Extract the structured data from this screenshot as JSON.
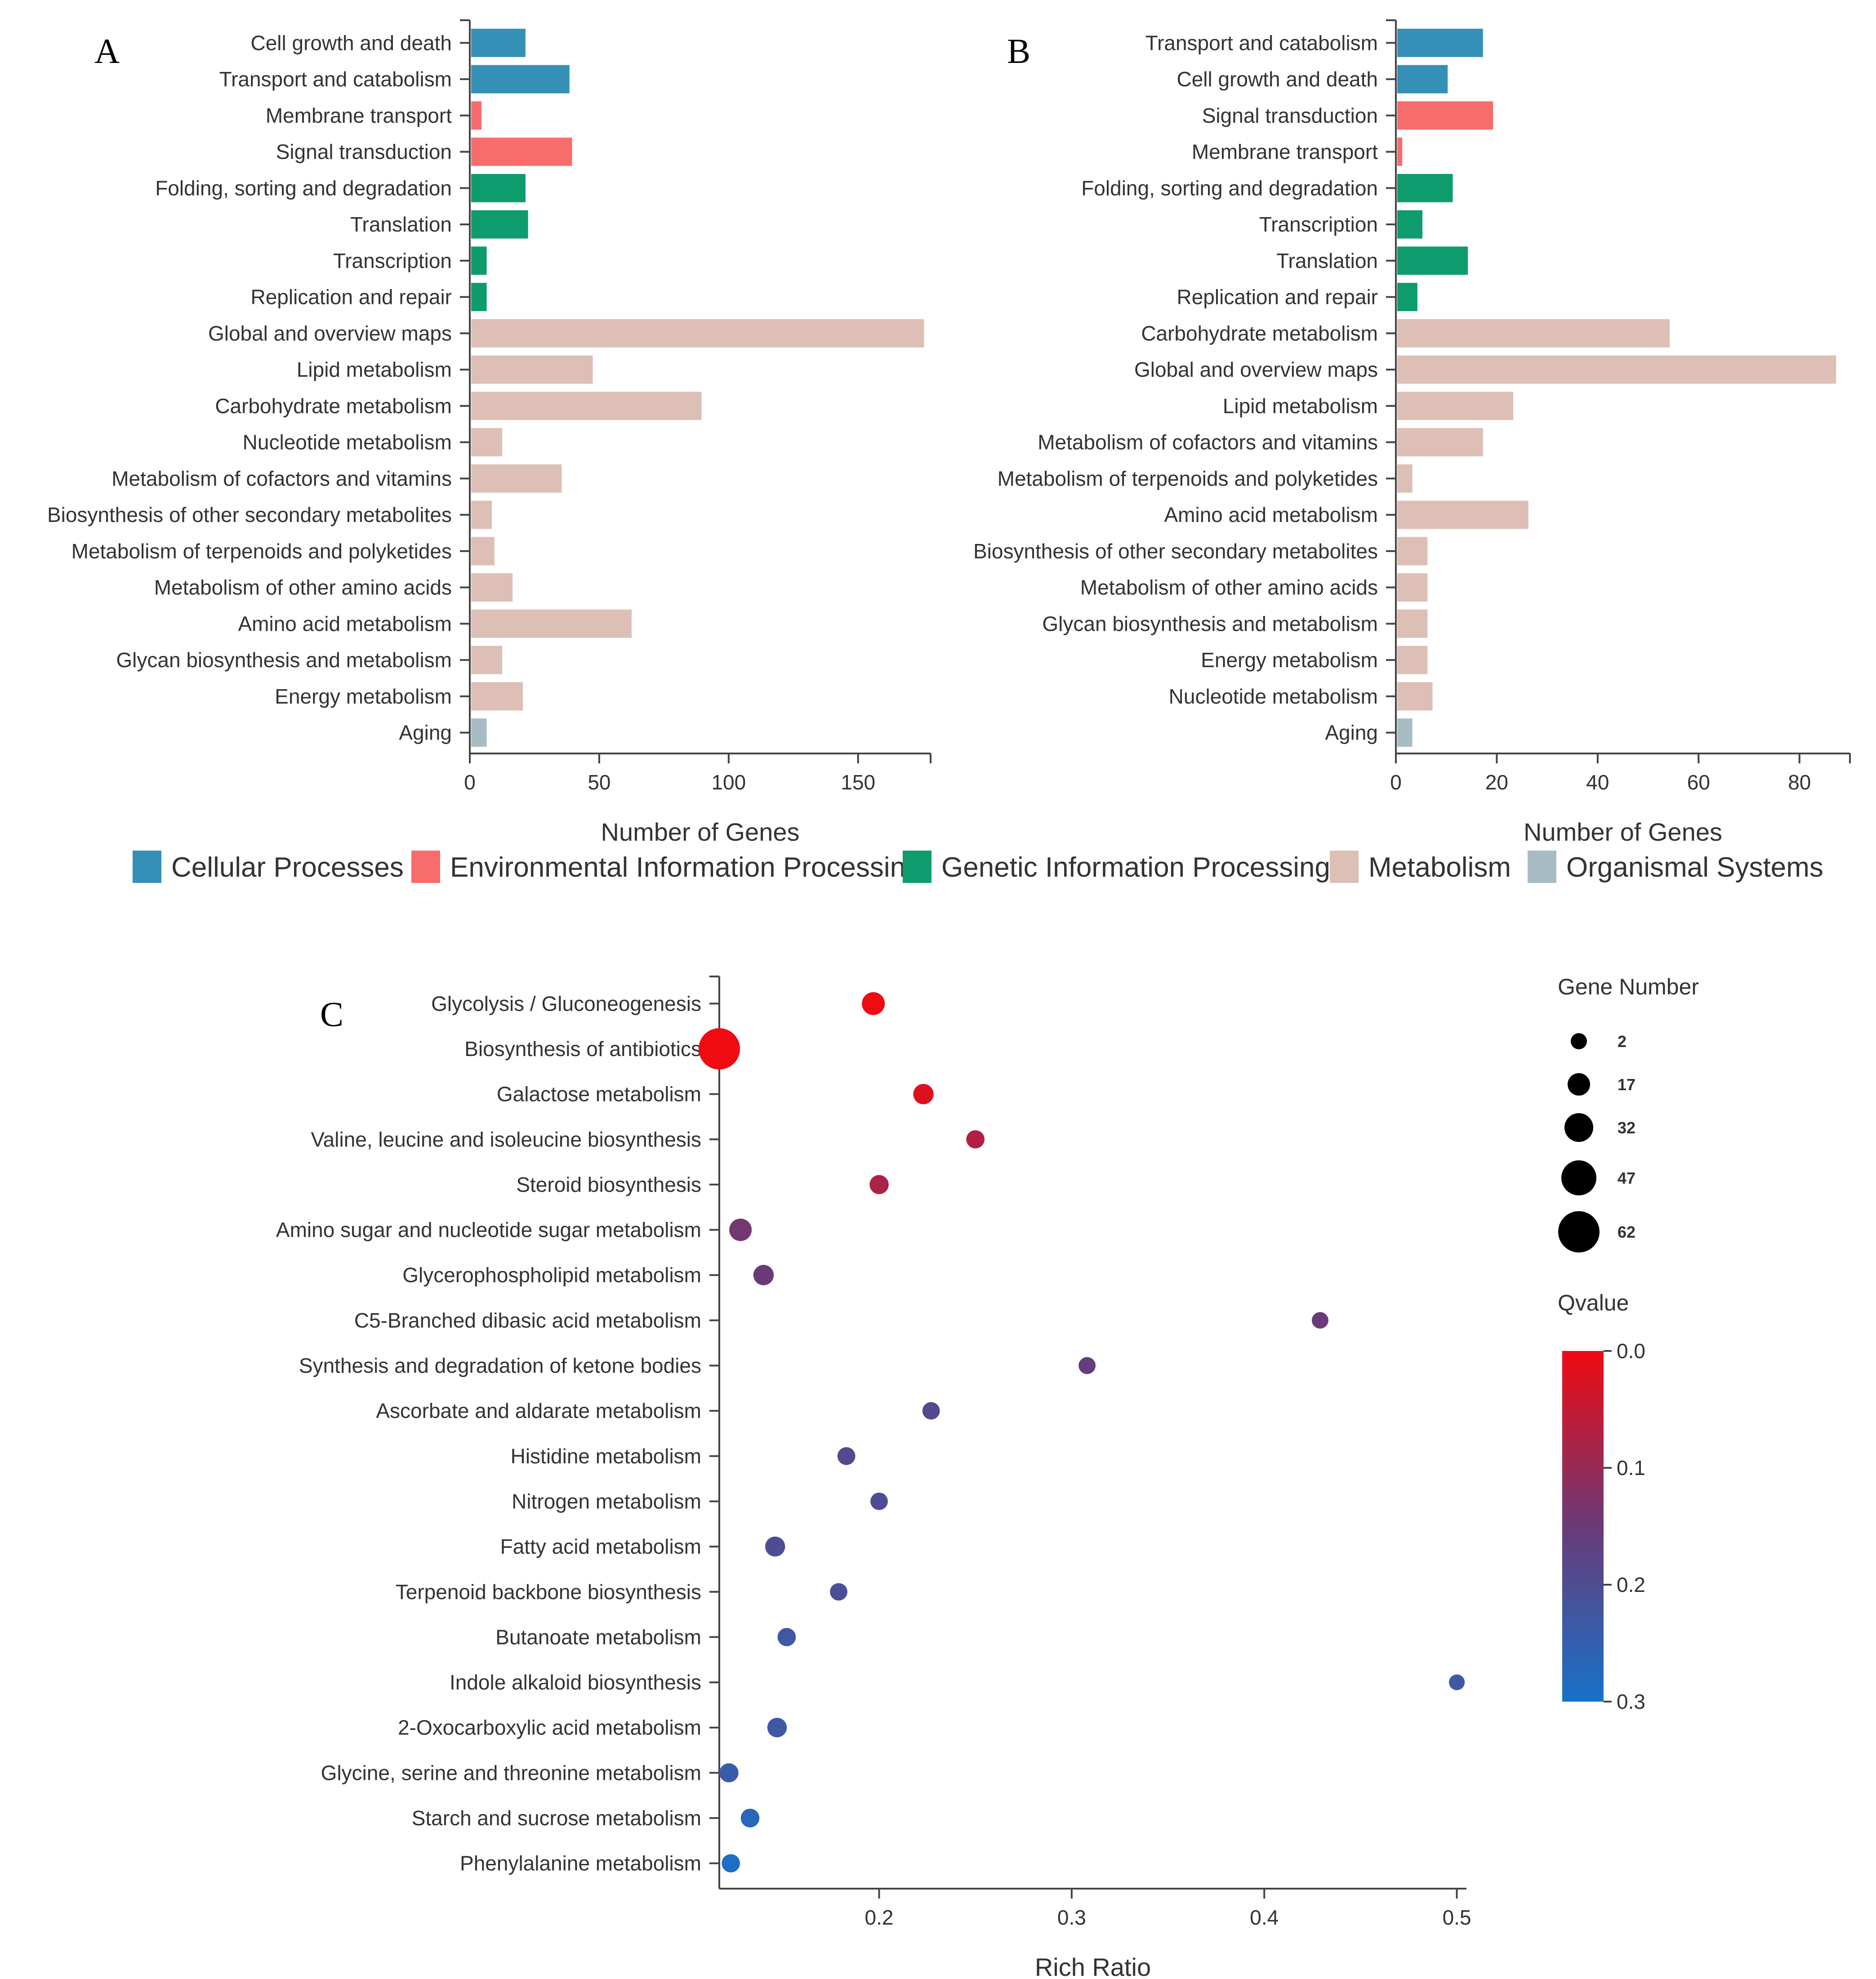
{
  "colors": {
    "Cellular Processes": "#3590b8",
    "Environmental Information Processing": "#f86c6c",
    "Genetic Information Processing": "#0e9c6e",
    "Metabolism": "#ddbfb6",
    "Organismal Systems": "#a8bcc4",
    "qvalue_low": "#f00a12",
    "qvalue_high": "#1772c9"
  },
  "legend": {
    "items": [
      "Cellular Processes",
      "Environmental Information Processing",
      "Genetic Information Processing",
      "Metabolism",
      "Organismal Systems"
    ]
  },
  "chart_data": [
    {
      "panel": "A",
      "type": "bar",
      "orientation": "horizontal",
      "xlabel": "Number of Genes",
      "xlim": [
        0,
        178
      ],
      "xticks": [
        0,
        50,
        100,
        150
      ],
      "categories": [
        "Cell growth and death",
        "Transport and catabolism",
        "Membrane transport",
        "Signal transduction",
        "Folding, sorting and degradation",
        "Translation",
        "Transcription",
        "Replication and repair",
        "Global and overview maps",
        "Lipid metabolism",
        "Carbohydrate metabolism",
        "Nucleotide metabolism",
        "Metabolism of cofactors and vitamins",
        "Biosynthesis of other secondary metabolites",
        "Metabolism of terpenoids and polyketides",
        "Metabolism of other amino acids",
        "Amino acid metabolism",
        "Glycan biosynthesis and metabolism",
        "Energy metabolism",
        "Aging"
      ],
      "values": [
        21,
        38,
        4,
        39,
        21,
        22,
        6,
        6,
        175,
        47,
        89,
        12,
        35,
        8,
        9,
        16,
        62,
        12,
        20,
        6
      ],
      "groups": [
        "Cellular Processes",
        "Cellular Processes",
        "Environmental Information Processing",
        "Environmental Information Processing",
        "Genetic Information Processing",
        "Genetic Information Processing",
        "Genetic Information Processing",
        "Genetic Information Processing",
        "Metabolism",
        "Metabolism",
        "Metabolism",
        "Metabolism",
        "Metabolism",
        "Metabolism",
        "Metabolism",
        "Metabolism",
        "Metabolism",
        "Metabolism",
        "Metabolism",
        "Organismal Systems"
      ]
    },
    {
      "panel": "B",
      "type": "bar",
      "orientation": "horizontal",
      "xlabel": "Number of Genes",
      "xlim": [
        0,
        90
      ],
      "xticks": [
        0,
        20,
        40,
        60,
        80
      ],
      "categories": [
        "Transport and catabolism",
        "Cell growth and death",
        "Signal transduction",
        "Membrane transport",
        "Folding, sorting and degradation",
        "Transcription",
        "Translation",
        "Replication and repair",
        "Carbohydrate metabolism",
        "Global and overview maps",
        "Lipid metabolism",
        "Metabolism of cofactors and vitamins",
        "Metabolism of terpenoids and polyketides",
        "Amino acid metabolism",
        "Biosynthesis of other secondary metabolites",
        "Metabolism of other amino acids",
        "Glycan biosynthesis and metabolism",
        "Energy metabolism",
        "Nucleotide metabolism",
        "Aging"
      ],
      "values": [
        17,
        10,
        19,
        1,
        11,
        5,
        14,
        4,
        54,
        87,
        23,
        17,
        3,
        26,
        6,
        6,
        6,
        6,
        7,
        3
      ],
      "groups": [
        "Cellular Processes",
        "Cellular Processes",
        "Environmental Information Processing",
        "Environmental Information Processing",
        "Genetic Information Processing",
        "Genetic Information Processing",
        "Genetic Information Processing",
        "Genetic Information Processing",
        "Metabolism",
        "Metabolism",
        "Metabolism",
        "Metabolism",
        "Metabolism",
        "Metabolism",
        "Metabolism",
        "Metabolism",
        "Metabolism",
        "Metabolism",
        "Metabolism",
        "Organismal Systems"
      ]
    },
    {
      "panel": "C",
      "type": "scatter",
      "xlabel": "Rich Ratio",
      "xlim": [
        0.117,
        0.505
      ],
      "xticks": [
        0.2,
        0.3,
        0.4,
        0.5
      ],
      "xtick_labels": [
        "0.2",
        "0.3",
        "0.4",
        "0.5"
      ],
      "categories": [
        "Glycolysis / Gluconeogenesis",
        "Biosynthesis of antibiotics",
        "Galactose metabolism",
        "Valine, leucine and isoleucine biosynthesis",
        "Steroid biosynthesis",
        "Amino sugar and nucleotide sugar metabolism",
        "Glycerophospholipid metabolism",
        "C5-Branched dibasic acid metabolism",
        "Synthesis and degradation of ketone bodies",
        "Ascorbate and aldarate metabolism",
        "Histidine metabolism",
        "Nitrogen metabolism",
        "Fatty acid metabolism",
        "Terpenoid backbone biosynthesis",
        "Butanoate metabolism",
        "Indole alkaloid biosynthesis",
        "2-Oxocarboxylic acid metabolism",
        "Glycine, serine and threonine metabolism",
        "Starch and sucrose metabolism",
        "Phenylalanine metabolism"
      ],
      "x": [
        0.197,
        0.117,
        0.223,
        0.25,
        0.2,
        0.128,
        0.14,
        0.429,
        0.308,
        0.227,
        0.183,
        0.2,
        0.146,
        0.179,
        0.152,
        0.5,
        0.147,
        0.122,
        0.133,
        0.123
      ],
      "gene_number": [
        18,
        62,
        12,
        7,
        9,
        17,
        12,
        3,
        4,
        5,
        6,
        5,
        11,
        5,
        7,
        1,
        10,
        9,
        8,
        7
      ],
      "qvalue": [
        0.0,
        0.0,
        0.02,
        0.07,
        0.08,
        0.14,
        0.15,
        0.15,
        0.16,
        0.19,
        0.19,
        0.2,
        0.2,
        0.21,
        0.23,
        0.23,
        0.23,
        0.24,
        0.27,
        0.29
      ],
      "size_legend": {
        "title": "Gene Number",
        "values": [
          2,
          17,
          32,
          47,
          62
        ],
        "labels": [
          "2",
          "17",
          "32",
          "47",
          "62"
        ]
      },
      "color_legend": {
        "title": "Qvalue",
        "range": [
          0.0,
          0.3
        ],
        "ticks": [
          "0.0",
          "0.1",
          "0.2",
          "0.3"
        ]
      }
    }
  ]
}
